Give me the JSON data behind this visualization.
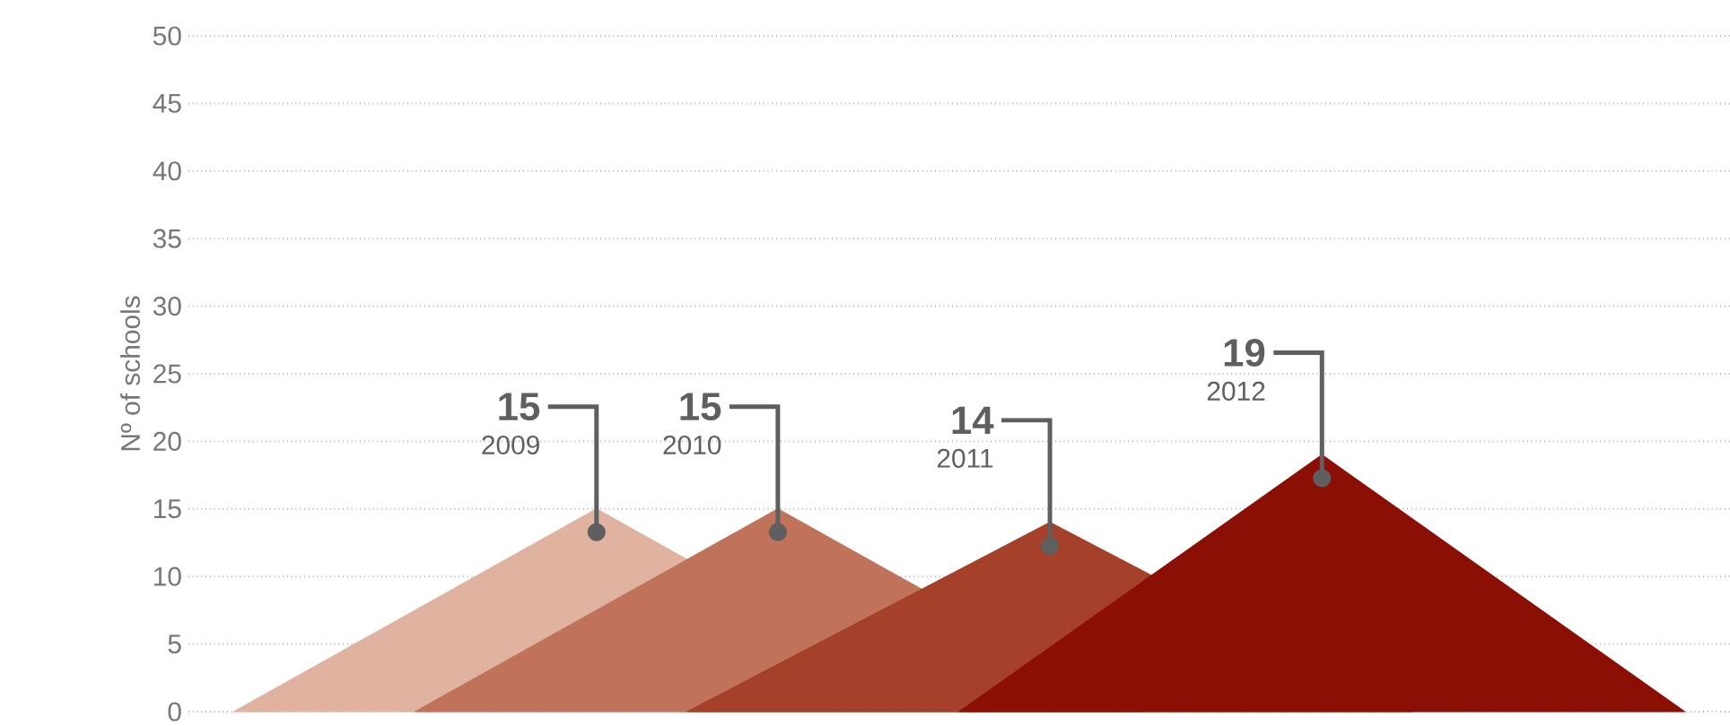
{
  "chart_data": {
    "type": "area",
    "ylabel": "Nº of schools",
    "categories": [
      null,
      null,
      null,
      null,
      null,
      null,
      null,
      null,
      null,
      null,
      null,
      null,
      null,
      null,
      null,
      null,
      null
    ],
    "ylim": [
      0,
      50
    ],
    "yticks": [
      0,
      5,
      10,
      15,
      20,
      25,
      30,
      35,
      40,
      45,
      50
    ],
    "grid": "y",
    "tick_labels": "y",
    "marker": "none",
    "series": [
      {
        "name": "2009",
        "color": "#dfb3a0",
        "values": [
          0,
          null,
          null,
          null,
          15,
          null,
          null,
          null,
          0,
          null,
          null,
          null,
          null,
          null,
          null,
          null,
          null
        ],
        "value_labels": [
          null,
          null,
          null,
          null,
          "15",
          null,
          null,
          null,
          null,
          null,
          null,
          null,
          null,
          null,
          null,
          null,
          null
        ]
      },
      {
        "name": "2010",
        "color": "#c0735a",
        "values": [
          null,
          null,
          0,
          null,
          null,
          null,
          15,
          null,
          null,
          null,
          0,
          null,
          null,
          null,
          null,
          null,
          null
        ],
        "value_labels": [
          null,
          null,
          null,
          null,
          null,
          null,
          "15",
          null,
          null,
          null,
          null,
          null,
          null,
          null,
          null,
          null,
          null
        ]
      },
      {
        "name": "2011",
        "color": "#a5402a",
        "values": [
          null,
          null,
          null,
          null,
          null,
          0,
          null,
          null,
          null,
          14,
          null,
          null,
          null,
          0,
          null,
          null,
          null
        ],
        "value_labels": [
          null,
          null,
          null,
          null,
          null,
          null,
          null,
          null,
          null,
          "14",
          null,
          null,
          null,
          null,
          null,
          null,
          null
        ]
      },
      {
        "name": "2012",
        "color": "#8b0f04",
        "values": [
          null,
          null,
          null,
          null,
          null,
          null,
          null,
          null,
          0,
          null,
          null,
          null,
          19,
          null,
          null,
          null,
          0
        ],
        "value_labels": [
          null,
          null,
          null,
          null,
          null,
          null,
          null,
          null,
          null,
          null,
          null,
          null,
          "19",
          null,
          null,
          null,
          null
        ]
      }
    ]
  }
}
